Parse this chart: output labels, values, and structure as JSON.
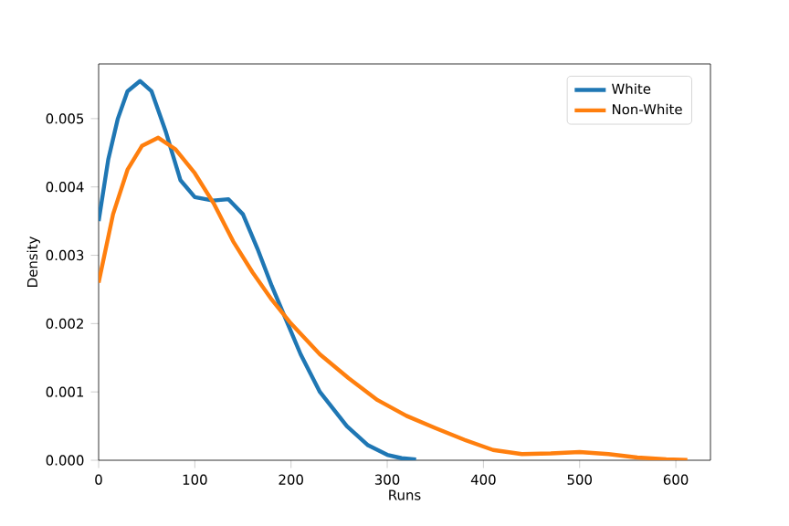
{
  "chart_data": {
    "type": "line",
    "xlabel": "Runs",
    "ylabel": "Density",
    "xlim": [
      0,
      636
    ],
    "ylim": [
      0,
      0.0058
    ],
    "xticks": [
      0,
      100,
      200,
      300,
      400,
      500,
      600
    ],
    "yticks": [
      {
        "value": 0,
        "label": "0.000"
      },
      {
        "value": 0.001,
        "label": "0.001"
      },
      {
        "value": 0.002,
        "label": "0.002"
      },
      {
        "value": 0.003,
        "label": "0.003"
      },
      {
        "value": 0.004,
        "label": "0.004"
      },
      {
        "value": 0.005,
        "label": "0.005"
      }
    ],
    "legend": "top right",
    "grid": false,
    "marker": "none",
    "line_style": "solid",
    "series": [
      {
        "name": "White",
        "color": "#1f77b4",
        "x": [
          0,
          10,
          20,
          30,
          43,
          55,
          70,
          85,
          100,
          119,
          135,
          150,
          165,
          180,
          195,
          210,
          230,
          258,
          280,
          300,
          315,
          330
        ],
        "values": [
          0.0035,
          0.0044,
          0.005,
          0.0054,
          0.00555,
          0.0054,
          0.0048,
          0.0041,
          0.00385,
          0.0038,
          0.00382,
          0.0036,
          0.0031,
          0.00255,
          0.00205,
          0.00155,
          0.001,
          0.0005,
          0.00022,
          8e-05,
          3e-05,
          1e-05
        ]
      },
      {
        "name": "Non-White",
        "color": "#ff7f0e",
        "x": [
          0,
          15,
          30,
          45,
          62,
          80,
          100,
          120,
          140,
          160,
          180,
          200,
          230,
          260,
          290,
          320,
          350,
          380,
          410,
          440,
          470,
          500,
          530,
          560,
          590,
          612
        ],
        "values": [
          0.0026,
          0.0036,
          0.00425,
          0.0046,
          0.00472,
          0.00455,
          0.0042,
          0.00375,
          0.0032,
          0.00275,
          0.00235,
          0.002,
          0.00155,
          0.0012,
          0.00088,
          0.00065,
          0.00047,
          0.0003,
          0.00015,
          9e-05,
          0.0001,
          0.00012,
          9e-05,
          4e-05,
          1.5e-05,
          5e-06
        ]
      }
    ]
  }
}
